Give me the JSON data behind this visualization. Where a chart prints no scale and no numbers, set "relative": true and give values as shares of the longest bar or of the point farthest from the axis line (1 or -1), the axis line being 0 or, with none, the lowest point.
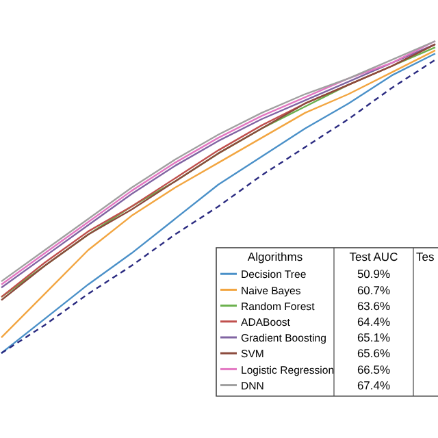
{
  "chart_data": {
    "type": "line",
    "relative": true,
    "categories": [
      null,
      null,
      null,
      null,
      null,
      null,
      null,
      null,
      null,
      null,
      null
    ],
    "series": [
      {
        "name": "Decision Tree",
        "color": "#4a90c8",
        "values": [
          0.0,
          0.11,
          0.22,
          0.32,
          0.43,
          0.54,
          0.63,
          0.72,
          0.8,
          0.89,
          0.96
        ]
      },
      {
        "name": "Naive Bayes",
        "color": "#f2a540",
        "values": [
          0.05,
          0.19,
          0.33,
          0.44,
          0.53,
          0.61,
          0.69,
          0.77,
          0.83,
          0.9,
          0.97
        ]
      },
      {
        "name": "Random Forest",
        "color": "#6ab04c",
        "values": [
          0.18,
          0.28,
          0.38,
          0.47,
          0.55,
          0.64,
          0.72,
          0.79,
          0.86,
          0.92,
          0.98
        ]
      },
      {
        "name": "ADABoost",
        "color": "#c0504d",
        "values": [
          0.18,
          0.29,
          0.39,
          0.47,
          0.56,
          0.65,
          0.73,
          0.8,
          0.86,
          0.92,
          0.99
        ]
      },
      {
        "name": "Gradient Boosting",
        "color": "#8064a2",
        "values": [
          0.21,
          0.31,
          0.41,
          0.51,
          0.6,
          0.68,
          0.75,
          0.81,
          0.87,
          0.93,
          0.99
        ]
      },
      {
        "name": "SVM",
        "color": "#8b4a3c",
        "values": [
          0.17,
          0.28,
          0.38,
          0.46,
          0.55,
          0.64,
          0.72,
          0.8,
          0.86,
          0.92,
          0.99
        ]
      },
      {
        "name": "Logistic Regression",
        "color": "#e377c2",
        "values": [
          0.22,
          0.32,
          0.42,
          0.52,
          0.61,
          0.69,
          0.76,
          0.82,
          0.88,
          0.93,
          1.0
        ]
      },
      {
        "name": "DNN",
        "color": "#a0a0a0",
        "values": [
          0.23,
          0.33,
          0.43,
          0.53,
          0.62,
          0.7,
          0.77,
          0.83,
          0.88,
          0.94,
          1.0
        ]
      },
      {
        "color": "#2a2a80",
        "line_style": "dashed",
        "values": [
          0.0,
          0.09,
          0.19,
          0.28,
          0.38,
          0.47,
          0.57,
          0.66,
          0.75,
          0.85,
          0.94
        ]
      }
    ],
    "legend": "bottom right",
    "legend_title": "Algorithms",
    "annotations": [
      "Test AUC",
      "Tes",
      "50.9%",
      "60.7%",
      "63.6%",
      "64.4%",
      "65.1%",
      "65.6%",
      "66.5%",
      "67.4%"
    ]
  }
}
